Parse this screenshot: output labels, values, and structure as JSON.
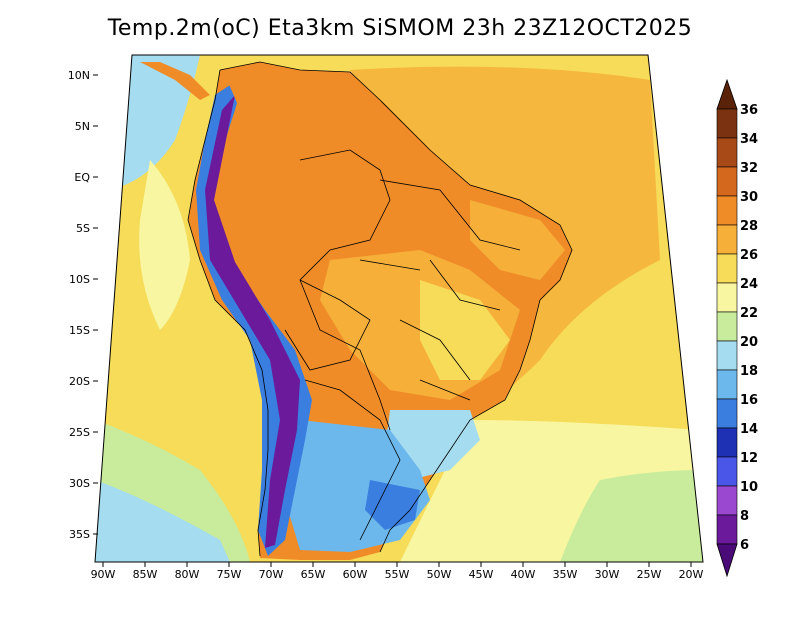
{
  "title": "Temp.2m(oC) Eta3km SiSMOM 23h 23Z12OCT2025",
  "lat_labels": [
    "10N",
    "5N",
    "EQ",
    "5S",
    "10S",
    "15S",
    "20S",
    "25S",
    "30S",
    "35S"
  ],
  "lon_labels": [
    "90W",
    "85W",
    "80W",
    "75W",
    "70W",
    "65W",
    "60W",
    "55W",
    "50W",
    "45W",
    "40W",
    "35W",
    "30W",
    "25W",
    "20W"
  ],
  "colorbar": {
    "labels": [
      "36",
      "34",
      "32",
      "30",
      "28",
      "26",
      "24",
      "22",
      "20",
      "18",
      "16",
      "14",
      "12",
      "10",
      "8",
      "6"
    ],
    "colors": [
      "#5a2208",
      "#7a3210",
      "#a84a18",
      "#d4681c",
      "#f08c28",
      "#f6b03a",
      "#f6dc58",
      "#f8f6a0",
      "#c8ec9c",
      "#a6dcf0",
      "#6cb8ec",
      "#3a7ee0",
      "#1e30b4",
      "#4a56e8",
      "#9a48d0",
      "#6a1a9a",
      "#4a0a78"
    ]
  },
  "legend_colors": {
    "ocean_warm": "#f6b03a",
    "ocean_mid": "#f6dc58",
    "ocean_cool": "#f8f6a0",
    "ocean_cold": "#c8ec9c",
    "ocean_colder": "#a6dcf0",
    "land_hot": "#f08c28",
    "land_warm": "#f6b03a",
    "andes_cold": "#6a1a9a",
    "andes_mid": "#3a7ee0",
    "south_land": "#6cb8ec",
    "north_ocean": "#f6dc58"
  }
}
